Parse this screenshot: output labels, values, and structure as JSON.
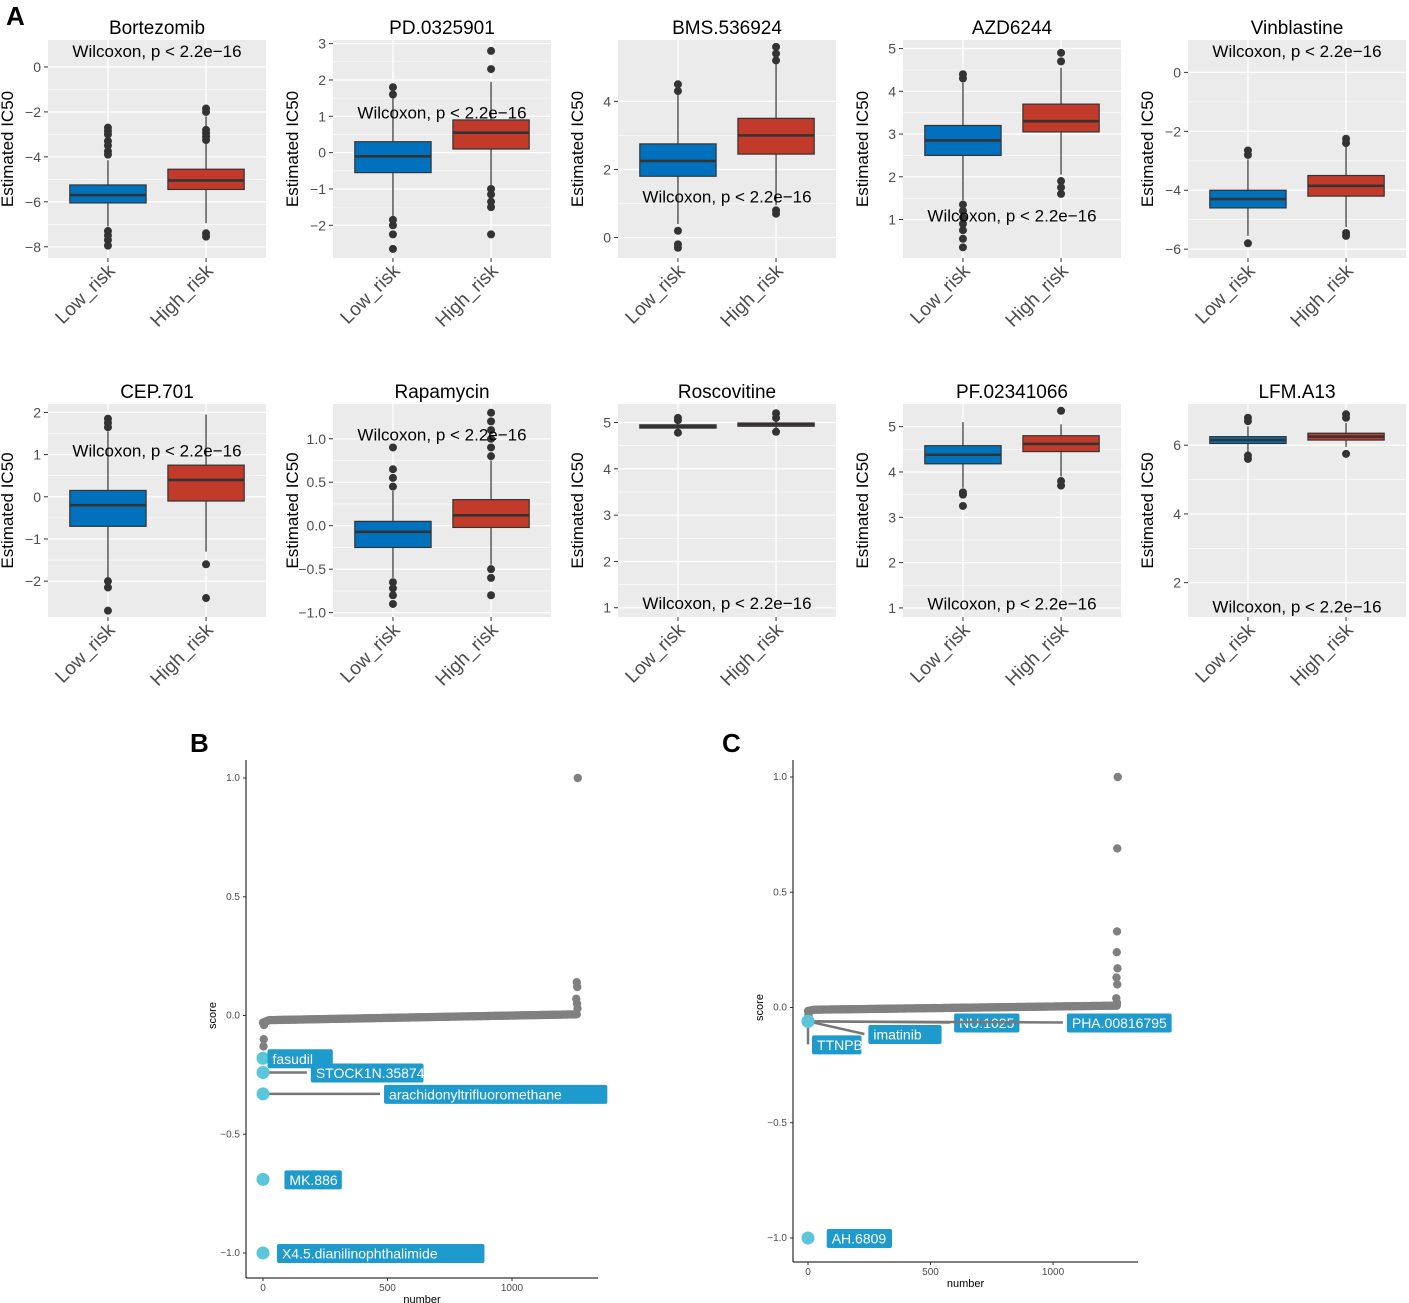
{
  "figure_labels": [
    "A",
    "B",
    "C"
  ],
  "colors": {
    "low": "#0072BD",
    "high": "#C23B2A",
    "panel_bg": "#EBEBEB",
    "point": "#808080",
    "highlight_point": "#5BC6D9",
    "label_bg": "#1F9ACD"
  },
  "chart_data": [
    {
      "type": "box",
      "title": "Bortezomib",
      "ylabel": "Estimated IC50",
      "categories": [
        "Low_risk",
        "High_risk"
      ],
      "annotation": "Wilcoxon, p < 2.2e−16",
      "ylim": [
        -8.5,
        1.2
      ],
      "yticks": [
        0,
        -2,
        -4,
        -6,
        -8
      ],
      "ytick_labels": [
        "0",
        "−2",
        "−4",
        "−6",
        "−8"
      ],
      "annot_y": 0.9,
      "boxes": [
        {
          "q1": -6.05,
          "median": -5.7,
          "q3": -5.25,
          "whisker_low": -7.1,
          "whisker_high": -4.15,
          "outliers": [
            -2.7,
            -2.85,
            -3.0,
            -3.3,
            -3.5,
            -3.75,
            -3.9,
            -7.3,
            -7.5,
            -7.7,
            -7.95
          ]
        },
        {
          "q1": -5.45,
          "median": -5.05,
          "q3": -4.55,
          "whisker_low": -6.95,
          "whisker_high": -2.2,
          "outliers": [
            -1.85,
            -2.0,
            -2.8,
            -2.95,
            -3.1,
            -3.25,
            -7.4,
            -7.55
          ]
        }
      ]
    },
    {
      "type": "box",
      "title": "PD.0325901",
      "ylabel": "Estimated IC50",
      "categories": [
        "Low_risk",
        "High_risk"
      ],
      "annotation": "Wilcoxon, p < 2.2e−16",
      "ylim": [
        -2.9,
        3.1
      ],
      "yticks": [
        3,
        2,
        1,
        0,
        -1,
        -2
      ],
      "ytick_labels": [
        "3",
        "2",
        "1",
        "0",
        "−1",
        "−2"
      ],
      "annot_y": 1.1,
      "boxes": [
        {
          "q1": -0.55,
          "median": -0.1,
          "q3": 0.3,
          "whisker_low": -1.75,
          "whisker_high": 1.5,
          "outliers": [
            1.6,
            1.8,
            -1.85,
            -2.0,
            -2.25,
            -2.65
          ]
        },
        {
          "q1": 0.1,
          "median": 0.55,
          "q3": 0.9,
          "whisker_low": -0.9,
          "whisker_high": 1.95,
          "outliers": [
            2.3,
            2.8,
            -1.0,
            -1.15,
            -1.35,
            -1.5,
            -2.25
          ]
        }
      ]
    },
    {
      "type": "box",
      "title": "BMS.536924",
      "ylabel": "Estimated IC50",
      "categories": [
        "Low_risk",
        "High_risk"
      ],
      "annotation": "Wilcoxon, p < 2.2e−16",
      "ylim": [
        -0.6,
        5.8
      ],
      "yticks": [
        4,
        2,
        0
      ],
      "ytick_labels": [
        "4",
        "2",
        "0"
      ],
      "annot_y": 1.2,
      "boxes": [
        {
          "q1": 1.8,
          "median": 2.25,
          "q3": 2.75,
          "whisker_low": 0.4,
          "whisker_high": 4.2,
          "outliers": [
            4.3,
            4.5,
            0.2,
            -0.2,
            -0.3
          ]
        },
        {
          "q1": 2.45,
          "median": 3.0,
          "q3": 3.5,
          "whisker_low": 0.95,
          "whisker_high": 5.1,
          "outliers": [
            5.2,
            5.4,
            5.6,
            0.8,
            0.7
          ]
        }
      ]
    },
    {
      "type": "box",
      "title": "AZD6244",
      "ylabel": "Estimated IC50",
      "categories": [
        "Low_risk",
        "High_risk"
      ],
      "annotation": "Wilcoxon, p < 2.2e−16",
      "ylim": [
        0.1,
        5.2
      ],
      "yticks": [
        5,
        4,
        3,
        2,
        1
      ],
      "ytick_labels": [
        "5",
        "4",
        "3",
        "2",
        "1"
      ],
      "annot_y": 1.1,
      "boxes": [
        {
          "q1": 2.5,
          "median": 2.85,
          "q3": 3.2,
          "whisker_low": 1.45,
          "whisker_high": 4.2,
          "outliers": [
            4.3,
            4.4,
            1.35,
            1.2,
            1.05,
            0.9,
            0.75,
            0.55,
            0.35
          ]
        },
        {
          "q1": 3.05,
          "median": 3.3,
          "q3": 3.7,
          "whisker_low": 2.05,
          "whisker_high": 4.55,
          "outliers": [
            4.7,
            4.9,
            1.9,
            1.75,
            1.6
          ]
        }
      ]
    },
    {
      "type": "box",
      "title": "Vinblastine",
      "ylabel": "Estimated IC50",
      "categories": [
        "Low_risk",
        "High_risk"
      ],
      "annotation": "Wilcoxon, p < 2.2e−16",
      "ylim": [
        -6.3,
        1.1
      ],
      "yticks": [
        0,
        -2,
        -4,
        -6
      ],
      "ytick_labels": [
        "0",
        "−2",
        "−4",
        "−6"
      ],
      "annot_y": 0.85,
      "boxes": [
        {
          "q1": -4.6,
          "median": -4.3,
          "q3": -4.0,
          "whisker_low": -5.55,
          "whisker_high": -2.95,
          "outliers": [
            -2.65,
            -2.8,
            -5.8
          ]
        },
        {
          "q1": -4.2,
          "median": -3.85,
          "q3": -3.5,
          "whisker_low": -5.25,
          "whisker_high": -2.5,
          "outliers": [
            -2.25,
            -2.4,
            -5.45,
            -5.55
          ]
        }
      ]
    },
    {
      "type": "box",
      "title": "CEP.701",
      "ylabel": "Estimated IC50",
      "categories": [
        "Low_risk",
        "High_risk"
      ],
      "annotation": "Wilcoxon, p < 2.2e−16",
      "ylim": [
        -2.85,
        2.2
      ],
      "yticks": [
        2,
        1,
        0,
        -1,
        -2
      ],
      "ytick_labels": [
        "2",
        "1",
        "0",
        "−1",
        "−2"
      ],
      "annot_y": 1.1,
      "boxes": [
        {
          "q1": -0.7,
          "median": -0.2,
          "q3": 0.15,
          "whisker_low": -1.95,
          "whisker_high": 1.55,
          "outliers": [
            1.65,
            1.75,
            1.85,
            -2.0,
            -2.15,
            -2.7
          ]
        },
        {
          "q1": -0.1,
          "median": 0.4,
          "q3": 0.75,
          "whisker_low": -1.3,
          "whisker_high": 1.95,
          "outliers": [
            -1.6,
            -2.4
          ]
        }
      ]
    },
    {
      "type": "box",
      "title": "Rapamycin",
      "ylabel": "Estimated IC50",
      "categories": [
        "Low_risk",
        "High_risk"
      ],
      "annotation": "Wilcoxon, p < 2.2e−16",
      "ylim": [
        -1.05,
        1.4
      ],
      "yticks": [
        1.0,
        0.5,
        0.0,
        -0.5,
        -1.0
      ],
      "ytick_labels": [
        "1.0",
        "0.5",
        "0.0",
        "−0.5",
        "−1.0"
      ],
      "annot_y": 1.05,
      "boxes": [
        {
          "q1": -0.25,
          "median": -0.07,
          "q3": 0.05,
          "whisker_low": -0.6,
          "whisker_high": 0.4,
          "outliers": [
            0.9,
            0.65,
            0.55,
            0.45,
            -0.65,
            -0.72,
            -0.8,
            -0.9
          ]
        },
        {
          "q1": -0.02,
          "median": 0.12,
          "q3": 0.3,
          "whisker_low": -0.45,
          "whisker_high": 0.75,
          "outliers": [
            1.3,
            1.2,
            1.1,
            1.0,
            0.9,
            0.8,
            -0.5,
            -0.6,
            -0.8
          ]
        }
      ]
    },
    {
      "type": "box",
      "title": "Roscovitine",
      "ylabel": "Estimated IC50",
      "categories": [
        "Low_risk",
        "High_risk"
      ],
      "annotation": "Wilcoxon, p < 2.2e−16",
      "ylim": [
        0.8,
        5.4
      ],
      "yticks": [
        5,
        4,
        3,
        2,
        1
      ],
      "ytick_labels": [
        "5",
        "4",
        "3",
        "2",
        "1"
      ],
      "annot_y": 1.1,
      "boxes": [
        {
          "q1": 4.88,
          "median": 4.92,
          "q3": 4.95,
          "whisker_low": 4.83,
          "whisker_high": 5.0,
          "outliers": [
            5.1,
            5.05,
            4.78
          ]
        },
        {
          "q1": 4.92,
          "median": 4.96,
          "q3": 4.99,
          "whisker_low": 4.87,
          "whisker_high": 5.05,
          "outliers": [
            5.2,
            5.1,
            4.8
          ]
        }
      ]
    },
    {
      "type": "box",
      "title": "PF.02341066",
      "ylabel": "Estimated IC50",
      "categories": [
        "Low_risk",
        "High_risk"
      ],
      "annotation": "Wilcoxon, p < 2.2e−16",
      "ylim": [
        0.8,
        5.5
      ],
      "yticks": [
        5,
        4,
        3,
        2,
        1
      ],
      "ytick_labels": [
        "5",
        "4",
        "3",
        "2",
        "1"
      ],
      "annot_y": 1.1,
      "boxes": [
        {
          "q1": 4.18,
          "median": 4.38,
          "q3": 4.58,
          "whisker_low": 3.65,
          "whisker_high": 5.1,
          "outliers": [
            3.55,
            3.5,
            3.25
          ]
        },
        {
          "q1": 4.45,
          "median": 4.62,
          "q3": 4.8,
          "whisker_low": 3.9,
          "whisker_high": 5.05,
          "outliers": [
            5.35,
            3.8,
            3.7
          ]
        }
      ]
    },
    {
      "type": "box",
      "title": "LFM.A13",
      "ylabel": "Estimated IC50",
      "categories": [
        "Low_risk",
        "High_risk"
      ],
      "annotation": "Wilcoxon, p < 2.2e−16",
      "ylim": [
        1.0,
        7.2
      ],
      "yticks": [
        6,
        4,
        2
      ],
      "ytick_labels": [
        "6",
        "4",
        "2"
      ],
      "annot_y": 1.3,
      "boxes": [
        {
          "q1": 6.05,
          "median": 6.15,
          "q3": 6.25,
          "whisker_low": 5.8,
          "whisker_high": 6.55,
          "outliers": [
            6.8,
            6.7,
            5.7,
            5.6
          ]
        },
        {
          "q1": 6.15,
          "median": 6.25,
          "q3": 6.35,
          "whisker_low": 5.95,
          "whisker_high": 6.65,
          "outliers": [
            6.9,
            6.8,
            5.75
          ]
        }
      ]
    },
    {
      "type": "scatter",
      "panel": "B",
      "xlabel": "number",
      "ylabel": "score",
      "xlim": [
        -60,
        1320
      ],
      "ylim": [
        -1.1,
        1.1
      ],
      "xticks": [
        0,
        500,
        1000
      ],
      "xtick_labels": [
        "0",
        "500",
        "1000"
      ],
      "yticks": [
        1.0,
        0.5,
        0.0,
        -0.5,
        -1.0
      ],
      "ytick_labels": [
        "1.0",
        "0.5",
        "0.0",
        "−0.5",
        "−1.0"
      ],
      "curve": {
        "n": 1265,
        "low": -0.02,
        "high": 0.005
      },
      "high_points": [
        {
          "x": 1264,
          "y": 1.0
        },
        {
          "x": 1260,
          "y": 0.14
        },
        {
          "x": 1262,
          "y": 0.12
        },
        {
          "x": 1258,
          "y": 0.07
        },
        {
          "x": 1261,
          "y": 0.05
        },
        {
          "x": 1263,
          "y": 0.03
        }
      ],
      "low_points": [
        {
          "x": 3,
          "y": -0.1
        },
        {
          "x": 2,
          "y": -0.13
        },
        {
          "x": 4,
          "y": -0.04
        },
        {
          "x": 5,
          "y": -0.03
        }
      ],
      "labeled": [
        {
          "name": "fasudil",
          "x": 0,
          "y": -0.18,
          "lx": 2,
          "ly": -0.18
        },
        {
          "name": "STOCK1N.35874",
          "x": 0,
          "y": -0.24,
          "lx": 176,
          "ly": -0.24
        },
        {
          "name": "arachidonyltrifluoromethane",
          "x": 0,
          "y": -0.33,
          "lx": 470,
          "ly": -0.33
        },
        {
          "name": "MK.886",
          "x": 0,
          "y": -0.69,
          "lx": 70,
          "ly": -0.69
        },
        {
          "name": "X4.5.dianilinophthalimide",
          "x": 0,
          "y": -1.0,
          "lx": 40,
          "ly": -1.0
        }
      ]
    },
    {
      "type": "scatter",
      "panel": "C",
      "xlabel": "number",
      "ylabel": "score",
      "xlim": [
        -60,
        1320
      ],
      "ylim": [
        -1.1,
        1.1
      ],
      "xticks": [
        0,
        500,
        1000
      ],
      "xtick_labels": [
        "0",
        "500",
        "1000"
      ],
      "yticks": [
        1.0,
        0.5,
        0.0,
        -0.5,
        -1.0
      ],
      "ytick_labels": [
        "1.0",
        "0.5",
        "0.0",
        "−0.5",
        "−1.0"
      ],
      "curve": {
        "n": 1265,
        "low": -0.01,
        "high": 0.008
      },
      "high_points": [
        {
          "x": 1264,
          "y": 1.0
        },
        {
          "x": 1262,
          "y": 0.69
        },
        {
          "x": 1261,
          "y": 0.33
        },
        {
          "x": 1260,
          "y": 0.24
        },
        {
          "x": 1263,
          "y": 0.17
        },
        {
          "x": 1259,
          "y": 0.13
        },
        {
          "x": 1262,
          "y": 0.1
        },
        {
          "x": 1258,
          "y": 0.04
        },
        {
          "x": 1261,
          "y": 0.02
        }
      ],
      "low_points": [
        {
          "x": 2,
          "y": -0.03
        }
      ],
      "labeled": [
        {
          "name": "TTNPB",
          "x": 0,
          "y": -0.06,
          "lx": 0,
          "ly": -0.16
        },
        {
          "name": "imatinib",
          "x": 0,
          "y": -0.06,
          "lx": 230,
          "ly": -0.115
        },
        {
          "name": "NU.1025",
          "x": 0,
          "y": -0.06,
          "lx": 580,
          "ly": -0.065
        },
        {
          "name": "PHA.00816795",
          "x": 0,
          "y": -0.06,
          "lx": 1040,
          "ly": -0.065
        },
        {
          "name": "AH.6809",
          "x": 0,
          "y": -1.0,
          "lx": 60,
          "ly": -1.0
        }
      ]
    }
  ]
}
